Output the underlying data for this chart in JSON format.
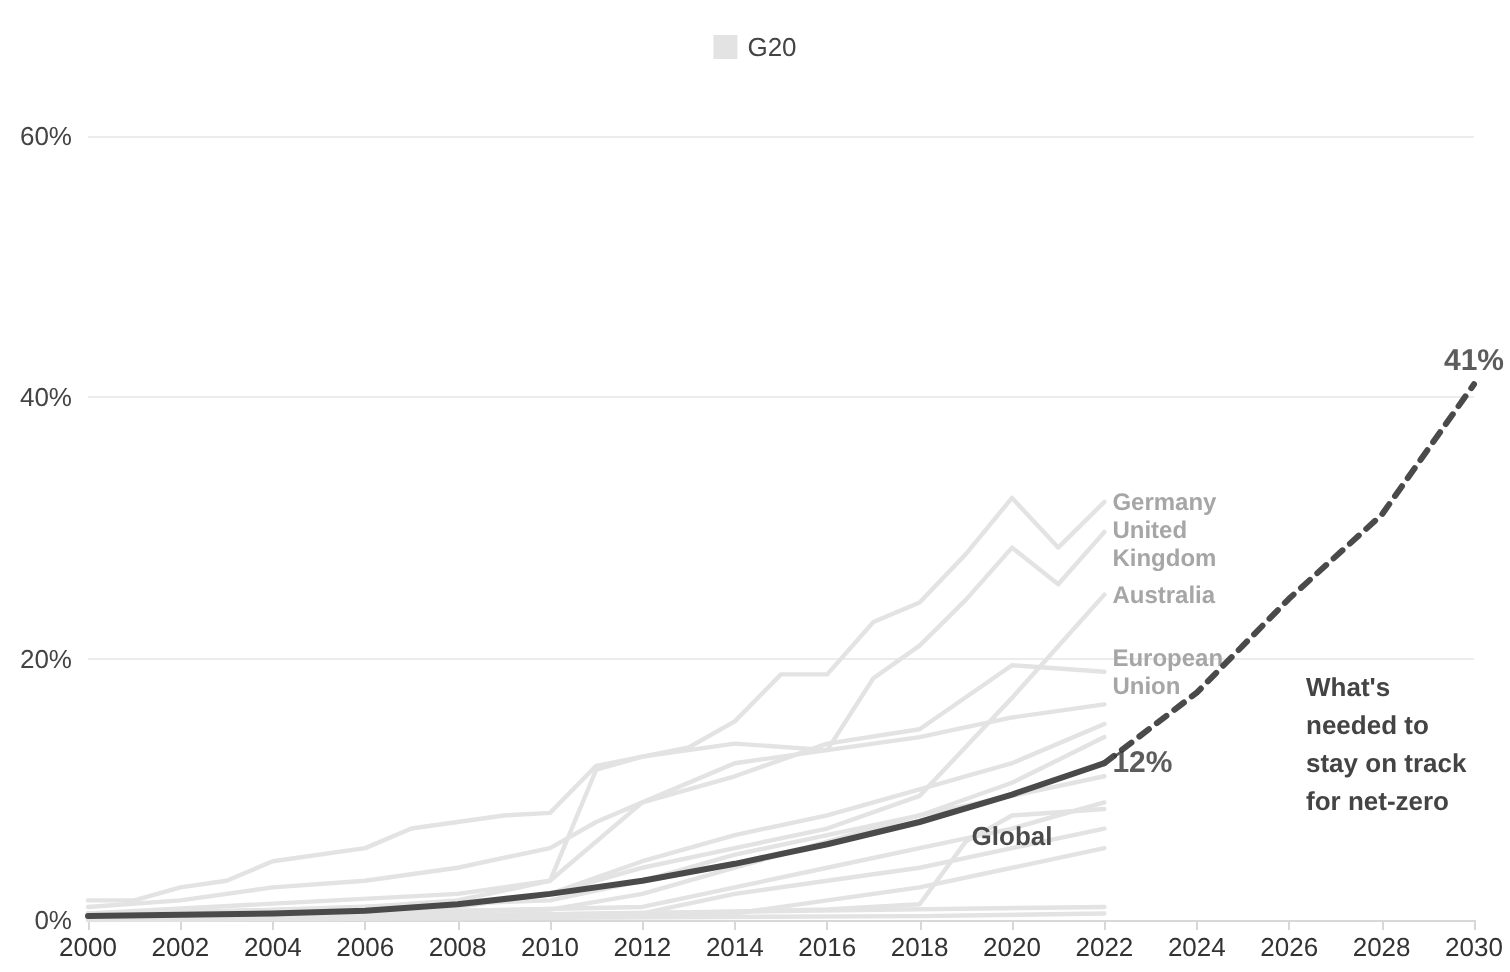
{
  "chart_data": {
    "type": "line",
    "xlim": [
      2000,
      2030
    ],
    "xticks": [
      2000,
      2002,
      2004,
      2006,
      2008,
      2010,
      2012,
      2014,
      2016,
      2018,
      2020,
      2022,
      2024,
      2026,
      2028,
      2030
    ],
    "ylim": [
      0,
      60
    ],
    "yticks": [
      {
        "value": 0,
        "label": "0%"
      },
      {
        "value": 20,
        "label": "20%"
      },
      {
        "value": 40,
        "label": "40%"
      },
      {
        "value": 60,
        "label": "60%"
      }
    ],
    "grid": "y",
    "legend": "top",
    "marker": "none",
    "annotations": [
      {
        "text": "12%",
        "x": 2022,
        "y": 12
      },
      {
        "text": "41%",
        "x": 2030,
        "y": 41
      },
      "What's needed to stay on track for net-zero"
    ],
    "series": [
      {
        "name": "G20",
        "color": "#e3e3e3",
        "x": [
          2000,
          2008,
          2010,
          2011,
          2012,
          2013,
          2014,
          2016,
          2018,
          2020,
          2022
        ],
        "values": [
          0.5,
          2,
          3,
          11.5,
          12.5,
          13,
          13.5,
          13,
          14,
          15.5,
          16.5
        ]
      },
      {
        "color": "#e3e3e3",
        "x": [
          2000,
          2008,
          2010,
          2012,
          2014,
          2016,
          2018,
          2020,
          2022
        ],
        "values": [
          0.5,
          1,
          2,
          4.5,
          6.5,
          8,
          10,
          12,
          15
        ]
      },
      {
        "color": "#e3e3e3",
        "x": [
          2000,
          2010,
          2012,
          2014,
          2016,
          2018,
          2020,
          2022
        ],
        "values": [
          0.2,
          0.8,
          2,
          4,
          6,
          8,
          10.5,
          14
        ]
      },
      {
        "color": "#e3e3e3",
        "x": [
          2000,
          2010,
          2012,
          2014,
          2016,
          2018,
          2020,
          2022
        ],
        "values": [
          0.3,
          1.5,
          3,
          5,
          6.5,
          8,
          9.5,
          11
        ]
      },
      {
        "color": "#e3e3e3",
        "x": [
          2000,
          2012,
          2014,
          2016,
          2018,
          2020,
          2022
        ],
        "values": [
          0.1,
          1,
          2.5,
          4,
          5.5,
          7,
          9
        ]
      },
      {
        "color": "#e3e3e3",
        "x": [
          2000,
          2012,
          2016,
          2018,
          2019,
          2020,
          2022
        ],
        "values": [
          0,
          0.5,
          0.8,
          1.2,
          6,
          8,
          8.5
        ]
      },
      {
        "color": "#e3e3e3",
        "x": [
          2000,
          2012,
          2014,
          2016,
          2018,
          2020,
          2022
        ],
        "values": [
          0.1,
          0.5,
          2,
          3,
          4,
          5.5,
          7
        ]
      },
      {
        "color": "#e3e3e3",
        "x": [
          2000,
          2014,
          2016,
          2018,
          2020,
          2022
        ],
        "values": [
          0,
          0.5,
          1.5,
          2.5,
          4,
          5.5
        ]
      },
      {
        "color": "#e3e3e3",
        "x": [
          2000,
          2022
        ],
        "values": [
          0,
          1
        ]
      },
      {
        "color": "#e3e3e3",
        "x": [
          2000,
          2018,
          2022
        ],
        "values": [
          0,
          0.3,
          0.5
        ]
      },
      {
        "name": "European Union",
        "color": "#e3e3e3",
        "x": [
          2000,
          2002,
          2004,
          2006,
          2008,
          2010,
          2011,
          2012,
          2014,
          2016,
          2018,
          2020,
          2022
        ],
        "values": [
          1,
          1.5,
          2.5,
          3,
          4,
          5.5,
          7.5,
          9,
          11,
          13.5,
          14.6,
          19.5,
          19
        ]
      },
      {
        "name": "Australia",
        "color": "#e3e3e3",
        "x": [
          2000,
          2008,
          2010,
          2012,
          2014,
          2016,
          2018,
          2020,
          2022
        ],
        "values": [
          0.5,
          1,
          2,
          4,
          5.5,
          7,
          9.5,
          17,
          24.9
        ]
      },
      {
        "name": "United Kingdom",
        "color": "#e3e3e3",
        "x": [
          2000,
          2006,
          2008,
          2010,
          2012,
          2014,
          2016,
          2017,
          2018,
          2019,
          2020,
          2021,
          2022
        ],
        "values": [
          0.3,
          1,
          1.5,
          3,
          9,
          12,
          13,
          18.5,
          21,
          24.5,
          28.5,
          25.7,
          29.7
        ]
      },
      {
        "name": "Germany",
        "color": "#e3e3e3",
        "x": [
          2000,
          2001,
          2002,
          2003,
          2004,
          2006,
          2007,
          2009,
          2010,
          2011,
          2012,
          2013,
          2014,
          2015,
          2016,
          2017,
          2018,
          2019,
          2020,
          2021,
          2022
        ],
        "values": [
          1.5,
          1.5,
          2.5,
          3,
          4.5,
          5.5,
          7,
          8,
          8.2,
          11.8,
          12.5,
          13.2,
          15.2,
          18.8,
          18.8,
          22.8,
          24.3,
          28,
          32.3,
          28.5,
          32
        ]
      },
      {
        "name": "Global",
        "color": "#4a4a4a",
        "x": [
          2000,
          2004,
          2006,
          2008,
          2010,
          2012,
          2014,
          2016,
          2018,
          2020,
          2022
        ],
        "values": [
          0.3,
          0.5,
          0.7,
          1.2,
          2,
          3,
          4.3,
          5.8,
          7.5,
          9.6,
          12
        ]
      },
      {
        "color": "#4a4a4a",
        "line_style": "dashed",
        "x": [
          2022,
          2024,
          2026,
          2028,
          2030
        ],
        "values": [
          12,
          17.4,
          24.6,
          31,
          41
        ]
      }
    ]
  }
}
